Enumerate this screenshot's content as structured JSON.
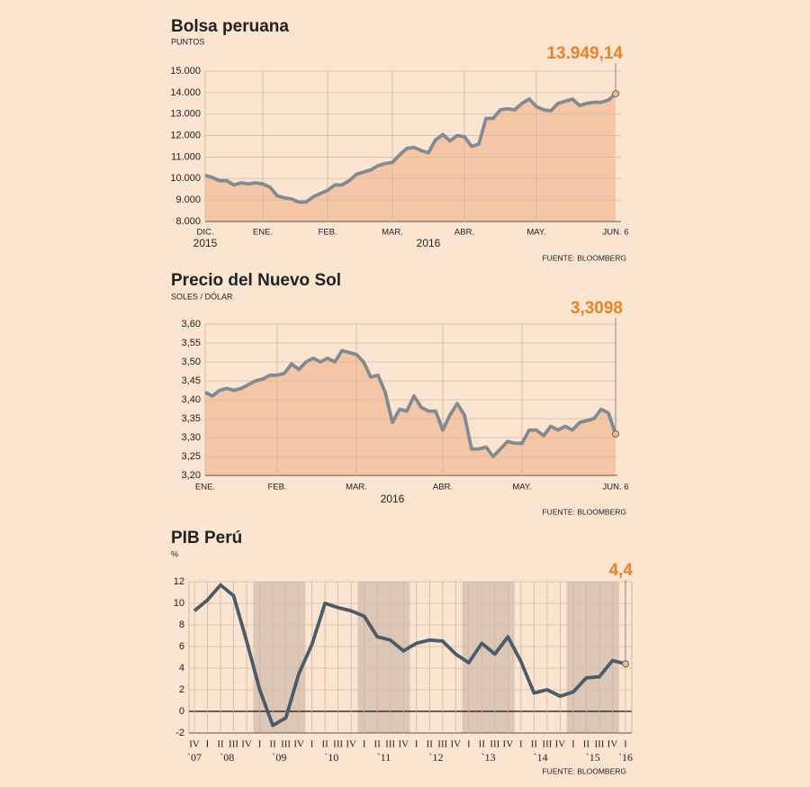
{
  "chart_data": [
    {
      "type": "line",
      "title": "Bolsa peruana",
      "subtitle": "PUNTOS",
      "source": "FUENTE: BLOOMBERG",
      "categories": [
        "DIC.",
        null,
        null,
        null,
        null,
        null,
        null,
        null,
        "ENE.",
        null,
        null,
        null,
        null,
        null,
        null,
        null,
        null,
        "FEB.",
        null,
        null,
        null,
        null,
        null,
        null,
        null,
        null,
        "MAR.",
        null,
        null,
        null,
        null,
        null,
        null,
        null,
        null,
        null,
        "ABR.",
        null,
        null,
        null,
        null,
        null,
        null,
        null,
        null,
        null,
        "MAY.",
        null,
        null,
        null,
        null,
        null,
        null,
        null,
        null,
        null,
        null,
        "JUN. 6"
      ],
      "years": [
        "2015",
        "2016"
      ],
      "area": true,
      "area_color": "#f5c6a5",
      "series": [
        {
          "color": "#808b93",
          "values": [
            10150,
            10050,
            9900,
            9900,
            9700,
            9800,
            9750,
            9800,
            9750,
            9600,
            9200,
            9100,
            9050,
            8900,
            8900,
            9150,
            9300,
            9450,
            9700,
            9700,
            9900,
            10200,
            10300,
            10400,
            10600,
            10700,
            10750,
            11100,
            11400,
            11450,
            11300,
            11200,
            11800,
            12050,
            11750,
            12000,
            11950,
            11500,
            11600,
            12800,
            12800,
            13200,
            13250,
            13200,
            13500,
            13700,
            13350,
            13200,
            13150,
            13500,
            13600,
            13700,
            13400,
            13500,
            13550,
            13550,
            13650,
            13949.14
          ],
          "value_labels": [
            null,
            null,
            null,
            null,
            null,
            null,
            null,
            null,
            null,
            null,
            null,
            null,
            null,
            null,
            null,
            null,
            null,
            null,
            null,
            null,
            null,
            null,
            null,
            null,
            null,
            null,
            null,
            null,
            null,
            null,
            null,
            null,
            null,
            null,
            null,
            null,
            null,
            null,
            null,
            null,
            null,
            null,
            null,
            null,
            null,
            null,
            null,
            null,
            null,
            null,
            null,
            null,
            null,
            null,
            null,
            null,
            null,
            "13.949,14"
          ]
        }
      ],
      "ylim": [
        8000,
        15000
      ],
      "yticks": [
        {
          "value": 8000,
          "label": "8.000"
        },
        {
          "value": 9000,
          "label": "9.000"
        },
        {
          "value": 10000,
          "label": "10.000"
        },
        {
          "value": 11000,
          "label": "11.000"
        },
        {
          "value": 12000,
          "label": "12.000"
        },
        {
          "value": 13000,
          "label": "13.000"
        },
        {
          "value": 14000,
          "label": "14.000"
        },
        {
          "value": 15000,
          "label": "15.000"
        }
      ],
      "grid": true,
      "highlight_color": "#e8822a"
    },
    {
      "type": "line",
      "title": "Precio del Nuevo Sol",
      "subtitle": "SOLES / DÓLAR",
      "source": "FUENTE: BLOOMBERG",
      "categories": [
        "ENE.",
        null,
        null,
        null,
        null,
        null,
        null,
        null,
        null,
        null,
        "FEB.",
        null,
        null,
        null,
        null,
        null,
        null,
        null,
        null,
        null,
        null,
        "MAR.",
        null,
        null,
        null,
        null,
        null,
        null,
        null,
        null,
        null,
        null,
        null,
        "ABR.",
        null,
        null,
        null,
        null,
        null,
        null,
        null,
        null,
        null,
        null,
        "MAY.",
        null,
        null,
        null,
        null,
        null,
        null,
        null,
        null,
        null,
        null,
        null,
        null,
        "JUN. 6"
      ],
      "years": [
        "2016"
      ],
      "area": true,
      "area_color": "#f5c6a5",
      "series": [
        {
          "color": "#808b93",
          "values": [
            3.42,
            3.41,
            3.425,
            3.43,
            3.425,
            3.43,
            3.44,
            3.45,
            3.455,
            3.465,
            3.465,
            3.47,
            3.495,
            3.48,
            3.5,
            3.51,
            3.5,
            3.51,
            3.5,
            3.53,
            3.525,
            3.52,
            3.5,
            3.46,
            3.465,
            3.42,
            3.34,
            3.375,
            3.37,
            3.41,
            3.38,
            3.37,
            3.37,
            3.32,
            3.36,
            3.39,
            3.36,
            3.27,
            3.27,
            3.275,
            3.25,
            3.27,
            3.29,
            3.285,
            3.285,
            3.32,
            3.32,
            3.305,
            3.33,
            3.32,
            3.33,
            3.32,
            3.34,
            3.345,
            3.35,
            3.375,
            3.365,
            3.3098
          ],
          "value_labels": [
            null,
            null,
            null,
            null,
            null,
            null,
            null,
            null,
            null,
            null,
            null,
            null,
            null,
            null,
            null,
            null,
            null,
            null,
            null,
            null,
            null,
            null,
            null,
            null,
            null,
            null,
            null,
            null,
            null,
            null,
            null,
            null,
            null,
            null,
            null,
            null,
            null,
            null,
            null,
            null,
            null,
            null,
            null,
            null,
            null,
            null,
            null,
            null,
            null,
            null,
            null,
            null,
            null,
            null,
            null,
            null,
            null,
            "3,3098"
          ]
        }
      ],
      "ylim": [
        3.2,
        3.6
      ],
      "yticks": [
        {
          "value": 3.2,
          "label": "3,20"
        },
        {
          "value": 3.25,
          "label": "3,25"
        },
        {
          "value": 3.3,
          "label": "3,30"
        },
        {
          "value": 3.35,
          "label": "3,35"
        },
        {
          "value": 3.4,
          "label": "3,40"
        },
        {
          "value": 3.45,
          "label": "3,45"
        },
        {
          "value": 3.5,
          "label": "3,50"
        },
        {
          "value": 3.55,
          "label": "3,55"
        },
        {
          "value": 3.6,
          "label": "3,60"
        }
      ],
      "grid": true,
      "highlight_color": "#e8822a"
    },
    {
      "type": "line",
      "title": "PIB Perú",
      "subtitle": "%",
      "source": "FUENTE: BLOOMBERG",
      "categories": [
        "IV",
        "I",
        "II",
        "III",
        "IV",
        "I",
        "II",
        "III",
        "IV",
        "I",
        "II",
        "III",
        "IV",
        "I",
        "II",
        "III",
        "IV",
        "I",
        "II",
        "III",
        "IV",
        "I",
        "II",
        "III",
        "IV",
        "I",
        "II",
        "III",
        "IV",
        "I",
        "II",
        "III",
        "IV",
        "I"
      ],
      "years": [
        "`07",
        "`08",
        "`09",
        "`10",
        "`11",
        "`12",
        "`13",
        "`14",
        "`15",
        "`16"
      ],
      "area": false,
      "series": [
        {
          "color": "#4b5b69",
          "values": [
            9.3,
            10.3,
            11.7,
            10.7,
            6.5,
            2.0,
            -1.3,
            -0.6,
            3.5,
            6.2,
            10.0,
            9.6,
            9.3,
            8.8,
            6.9,
            6.6,
            5.6,
            6.3,
            6.6,
            6.5,
            5.3,
            4.5,
            6.3,
            5.3,
            6.9,
            4.6,
            1.7,
            2.0,
            1.4,
            1.8,
            3.1,
            3.2,
            4.7,
            4.4
          ],
          "value_labels": [
            null,
            null,
            null,
            null,
            null,
            null,
            null,
            null,
            null,
            null,
            null,
            null,
            null,
            null,
            null,
            null,
            null,
            null,
            null,
            null,
            null,
            null,
            null,
            null,
            null,
            null,
            null,
            null,
            null,
            null,
            null,
            null,
            null,
            "4,4"
          ]
        }
      ],
      "ylim": [
        -2,
        12
      ],
      "yticks": [
        -2,
        0,
        2,
        4,
        6,
        8,
        10,
        12
      ],
      "grid": true,
      "highlight_color": "#e8822a"
    }
  ]
}
